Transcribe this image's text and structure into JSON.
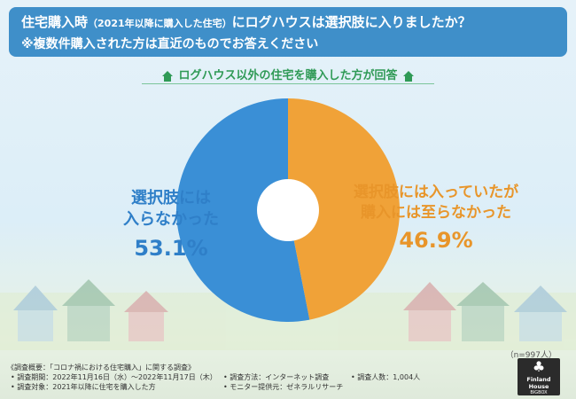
{
  "header": {
    "question_prefix": "住宅購入時",
    "question_paren": "（2021年以降に購入した住宅）",
    "question_suffix": "にログハウスは選択肢に入りましたか？",
    "note": "※複数件購入された方は直近のものでお答えください"
  },
  "subtitle": "ログハウス以外の住宅を購入した方が回答",
  "chart_data": {
    "type": "pie",
    "donut": true,
    "slices": [
      {
        "label_line1": "選択肢には",
        "label_line2": "入らなかった",
        "value": 53.1,
        "value_text": "53.1%",
        "color": "#3a8fd6"
      },
      {
        "label_line1": "選択肢には入っていたが",
        "label_line2": "購入には至らなかった",
        "value": 46.9,
        "value_text": "46.9%",
        "color": "#f0a238"
      }
    ],
    "sample_size": "（n=997人）"
  },
  "footer": {
    "overview": "《調査概要：「コロナ禍における住宅購入」に関する調査》",
    "period": "• 調査期間：2022年11月16日（水）～2022年11月17日（木）",
    "method": "• 調査方法：インターネット調査",
    "count": "• 調査人数：1,004人",
    "target": "• 調査対象：2021年以降に住宅を購入した方",
    "provider": "• モニター提供元：ゼネラルリサーチ"
  },
  "logo": {
    "line1": "Finland House",
    "line2": "BIGBOX"
  },
  "colors": {
    "header_bg": "#3f8fc9",
    "subtitle": "#2f9a56",
    "left_slice": "#3a8fd6",
    "right_slice": "#f0a238"
  }
}
